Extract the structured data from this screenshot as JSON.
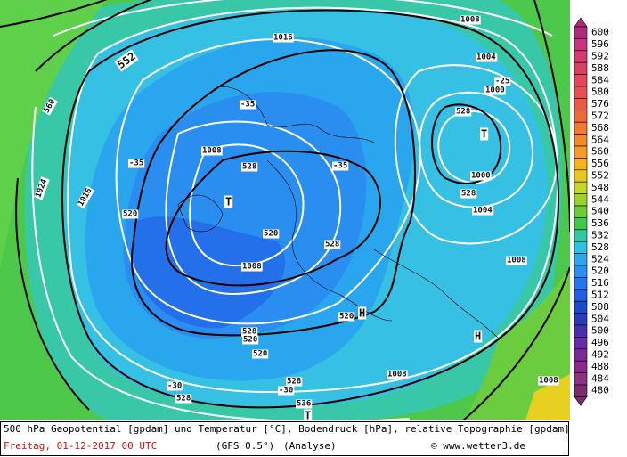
{
  "colorbar": {
    "labels": [
      "600",
      "596",
      "592",
      "588",
      "584",
      "580",
      "576",
      "572",
      "568",
      "564",
      "560",
      "556",
      "552",
      "548",
      "544",
      "540",
      "536",
      "532",
      "528",
      "524",
      "520",
      "516",
      "512",
      "508",
      "504",
      "500",
      "496",
      "492",
      "488",
      "484",
      "480"
    ],
    "colors": [
      "#b02a7a",
      "#c8337f",
      "#d43a6e",
      "#dc4060",
      "#e3485a",
      "#e85050",
      "#ea5a44",
      "#ee6a3a",
      "#f07a32",
      "#f38a2a",
      "#f59c24",
      "#f7b020",
      "#e8c81c",
      "#c8d820",
      "#9ad42a",
      "#6ccc36",
      "#42c848",
      "#30c8a0",
      "#30c0e0",
      "#2aa8ee",
      "#2890f0",
      "#2478ee",
      "#2060e0",
      "#1c48cc",
      "#2a3ab8",
      "#4a30b0",
      "#6a2aa8",
      "#7a2a98",
      "#882a8a",
      "#903080",
      "#7a2a70"
    ]
  },
  "map_labels": [
    "1016",
    "552",
    "560",
    "-35",
    "-35",
    "-35",
    "1008",
    "528",
    "T",
    "1024",
    "1016",
    "520",
    "520",
    "528",
    "1008",
    "520",
    "H",
    "528",
    "520",
    "520",
    "-30",
    "-30",
    "528",
    "528",
    "536",
    "T",
    "1008",
    "H",
    "1008",
    "1004",
    "1000",
    "528",
    "T",
    "528",
    "1000",
    "-25",
    "1004",
    "1008",
    "1008"
  ],
  "footer": {
    "description": "500 hPa Geopotential [gpdam] und Temperatur [°C], Bodendruck [hPa], relative Topographie [gpdam]",
    "date": "Freitag, 01-12-2017  00 UTC",
    "model": "(GFS 0.5°)",
    "run": "(Analyse)",
    "copyright": "© www.wetter3.de"
  }
}
